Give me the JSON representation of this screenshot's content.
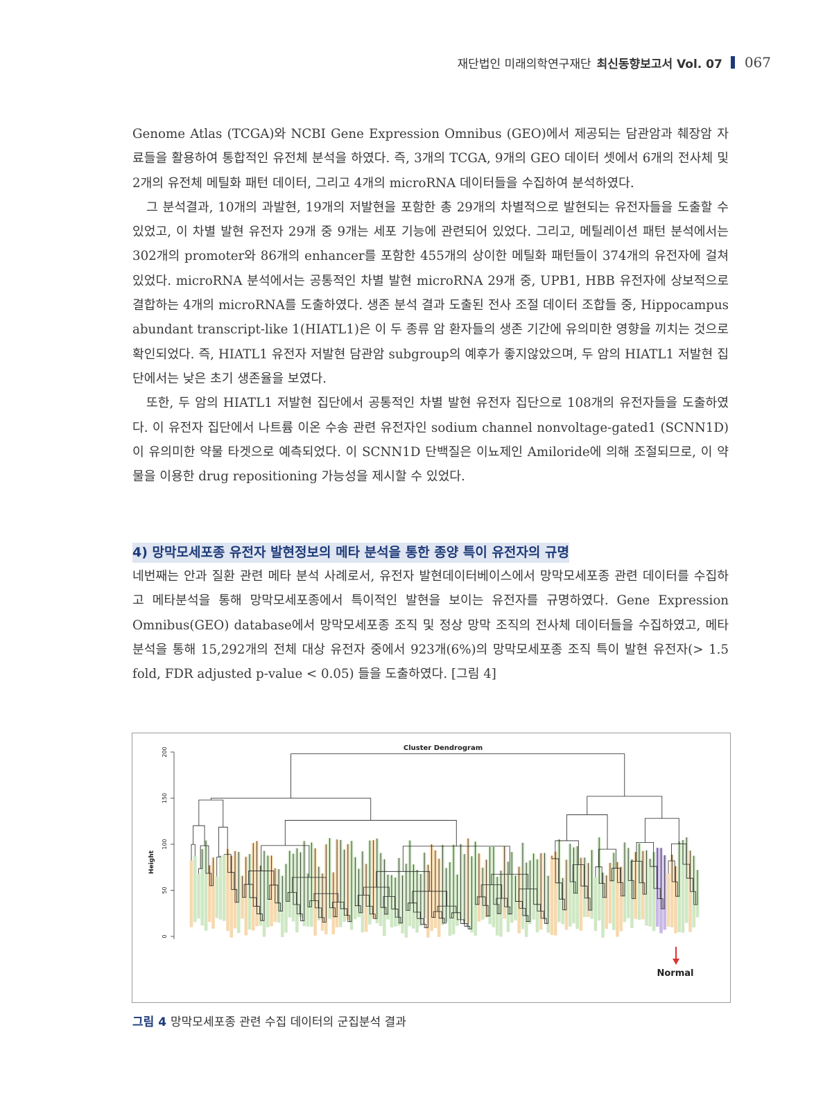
{
  "header": {
    "org": "재단법인 미래의학연구재단",
    "title": "최신동향보고서 Vol. 07",
    "page_number": "067"
  },
  "paragraphs_top": [
    "Genome Atlas (TCGA)와 NCBI Gene Expression Omnibus (GEO)에서 제공되는 담관암과 췌장암 자료들을 활용하여 통합적인 유전체 분석을 하였다. 즉, 3개의 TCGA, 9개의 GEO 데이터 셋에서 6개의 전사체 및 2개의 유전체 메틸화 패턴 데이터, 그리고 4개의 microRNA 데이터들을 수집하여 분석하였다.",
    "그 분석결과, 10개의 과발현, 19개의 저발현을 포함한 총 29개의 차별적으로 발현되는 유전자들을 도출할 수 있었고, 이 차별 발현 유전자 29개 중 9개는 세포 기능에 관련되어 있었다. 그리고, 메틸레이션 패턴 분석에서는 302개의 promoter와 86개의 enhancer를 포함한 455개의 상이한 메틸화 패턴들이 374개의 유전자에 걸쳐 있었다. microRNA 분석에서는 공통적인 차별 발현 microRNA 29개 중, UPB1, HBB 유전자에 상보적으로 결합하는 4개의 microRNA를 도출하였다. 생존 분석 결과 도출된 전사 조절 데이터 조합들 중, Hippocampus abundant transcript-like 1(HIATL1)은 이 두 종류 암 환자들의 생존 기간에 유의미한 영향을 끼치는 것으로 확인되었다. 즉, HIATL1 유전자 저발현 담관암 subgroup의 예후가 좋지않았으며, 두 암의 HIATL1 저발현 집단에서는 낮은 초기 생존율을 보였다.",
    "또한, 두 암의 HIATL1 저발현 집단에서 공통적인 차별 발현 유전자 집단으로 108개의 유전자들을 도출하였다. 이 유전자 집단에서 나트륨 이온 수송 관련 유전자인 sodium channel nonvoltage-gated1 (SCNN1D)이 유의미한 약물 타겟으로 예측되었다. 이 SCNN1D 단백질은 이뇨제인 Amiloride에 의해 조절되므로, 이 약물을 이용한 drug repositioning 가능성을 제시할 수 있었다."
  ],
  "section": {
    "title": "4) 망막모세포종 유전자 발현정보의 메타 분석을 통한 종양 특이 유전자의 규명"
  },
  "paragraphs_bottom": [
    "네번째는 안과 질환 관련 메타 분석 사례로서, 유전자 발현데이터베이스에서 망막모세포종 관련 데이터를 수집하고 메타분석을 통해 망막모세포종에서 특이적인 발현을 보이는 유전자를 규명하였다. Gene Expression Omnibus(GEO) database에서 망막모세포종 조직 및 정상 망막 조직의 전사체 데이터들을 수집하였고, 메타분석을 통해 15,292개의 전체 대상 유전자 중에서 923개(6%)의 망막모세포종 조직 특이 발현 유전자(> 1.5 fold, FDR adjusted p-value < 0.05) 들을 도출하였다. [그림 4]"
  ],
  "figure": {
    "title": "Cluster Dendrogram",
    "ylabel": "Height",
    "yticks": [
      "0",
      "50",
      "100",
      "150",
      "200"
    ],
    "annotation": "Normal",
    "colors": {
      "green": "#cfe8c4",
      "orange": "#f7d9ae",
      "purple": "#c8b8e6",
      "arrow": "#e03030",
      "line": "#222222"
    }
  },
  "caption": {
    "label": "그림 4",
    "text": "망막모세포종 관련 수집 데이터의 군집분석 결과"
  }
}
